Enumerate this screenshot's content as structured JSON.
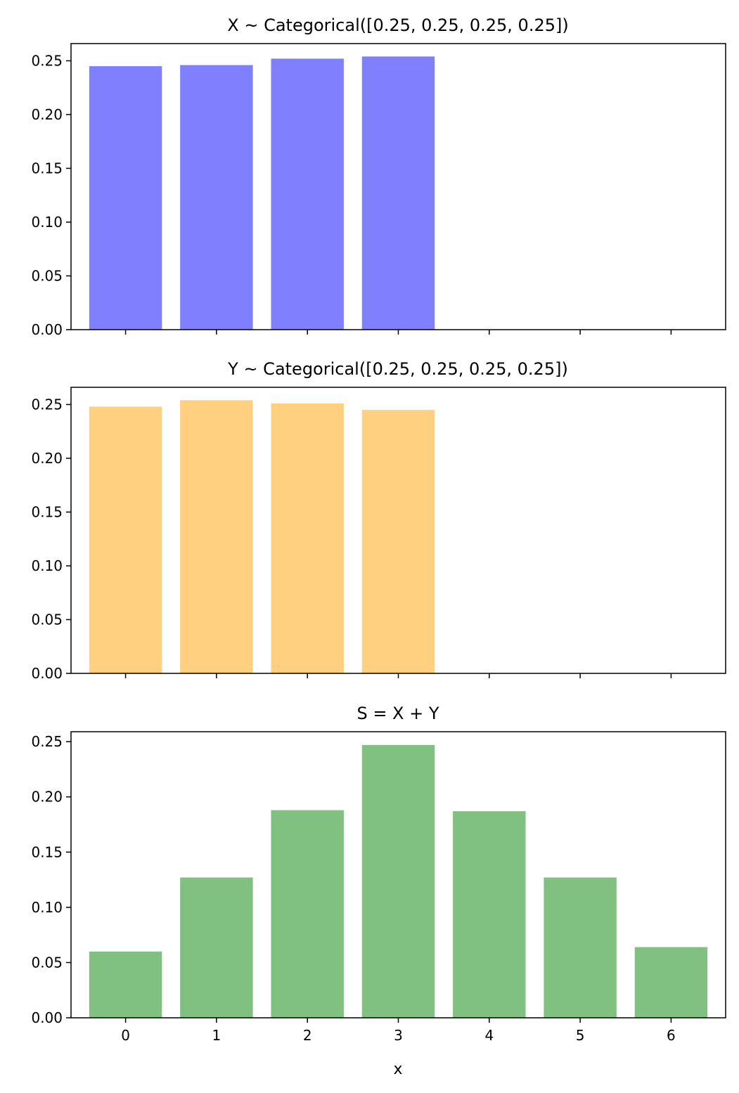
{
  "chart_data": [
    {
      "type": "bar",
      "title": "X ~ Categorical([0.25, 0.25, 0.25, 0.25])",
      "xlabel": "",
      "ylabel": "",
      "categories": [
        0,
        1,
        2,
        3
      ],
      "values": [
        0.245,
        0.246,
        0.252,
        0.254
      ],
      "color": "#8080ff",
      "xlim": [
        -0.6,
        6.6
      ],
      "ylim": [
        0,
        0.266
      ],
      "yticks": [
        "0.00",
        "0.05",
        "0.10",
        "0.15",
        "0.20",
        "0.25"
      ],
      "xticks": [
        0,
        1,
        2,
        3,
        4,
        5,
        6
      ],
      "show_xtick_labels": false,
      "grid": false
    },
    {
      "type": "bar",
      "title": "Y ~ Categorical([0.25, 0.25, 0.25, 0.25])",
      "xlabel": "",
      "ylabel": "",
      "categories": [
        0,
        1,
        2,
        3
      ],
      "values": [
        0.248,
        0.254,
        0.251,
        0.245
      ],
      "color": "#ffd080",
      "xlim": [
        -0.6,
        6.6
      ],
      "ylim": [
        0,
        0.266
      ],
      "yticks": [
        "0.00",
        "0.05",
        "0.10",
        "0.15",
        "0.20",
        "0.25"
      ],
      "xticks": [
        0,
        1,
        2,
        3,
        4,
        5,
        6
      ],
      "show_xtick_labels": false,
      "grid": false
    },
    {
      "type": "bar",
      "title": "S = X + Y",
      "xlabel": "x",
      "ylabel": "",
      "categories": [
        0,
        1,
        2,
        3,
        4,
        5,
        6
      ],
      "values": [
        0.06,
        0.127,
        0.188,
        0.247,
        0.187,
        0.127,
        0.064
      ],
      "color": "#80c080",
      "xlim": [
        -0.6,
        6.6
      ],
      "ylim": [
        0,
        0.259
      ],
      "yticks": [
        "0.00",
        "0.05",
        "0.10",
        "0.15",
        "0.20",
        "0.25"
      ],
      "xticks": [
        0,
        1,
        2,
        3,
        4,
        5,
        6
      ],
      "show_xtick_labels": true,
      "grid": false
    }
  ]
}
